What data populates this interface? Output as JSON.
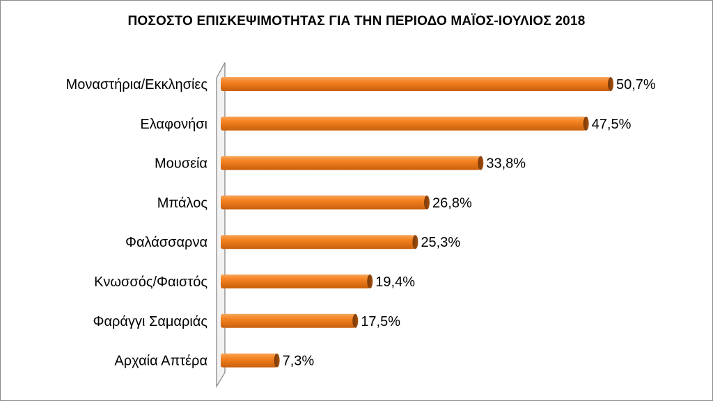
{
  "chart_data": {
    "type": "bar",
    "orientation": "horizontal",
    "title": "ΠΟΣΟΣΤΟ ΕΠΙΣΚΕΨΙΜΟΤΗΤΑΣ ΓΙΑ ΤΗΝ ΠΕΡΙΟΔΟ ΜΑΪΟΣ-ΙΟΥΛΙΟΣ 2018",
    "categories": [
      "Μοναστήρια/Εκκλησίες",
      "Ελαφονήσι",
      "Μουσεία",
      "Μπάλος",
      "Φαλάσσαρνα",
      "Κνωσσός/Φαιστός",
      "Φαράγγι Σαμαριάς",
      "Αρχαία Απτέρα"
    ],
    "values": [
      50.7,
      47.5,
      33.8,
      26.8,
      25.3,
      19.4,
      17.5,
      7.3
    ],
    "value_labels": [
      "50,7%",
      "47,5%",
      "33,8%",
      "26,8%",
      "25,3%",
      "19,4%",
      "17,5%",
      "7,3%"
    ],
    "xlim": [
      0,
      50.7
    ],
    "grid": false,
    "legend": "none",
    "bar_color": "#f58220"
  }
}
